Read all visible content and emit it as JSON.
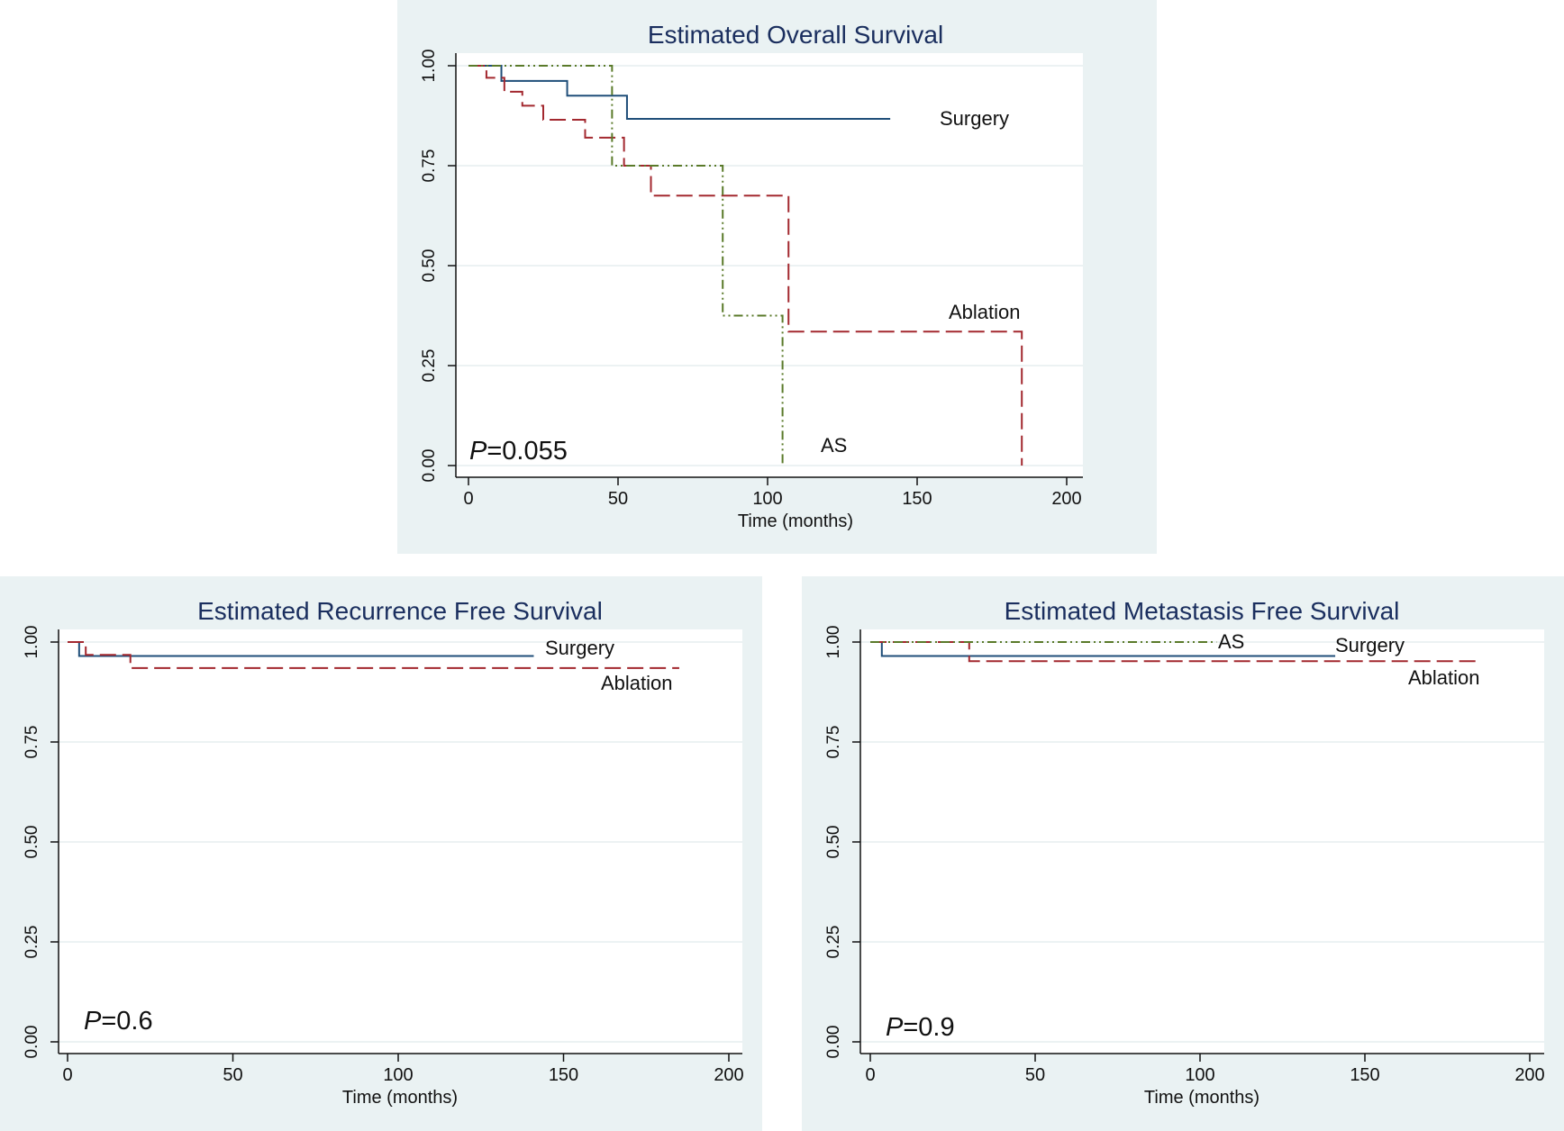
{
  "chart_data": [
    {
      "type": "line",
      "title": "Estimated Overall Survival",
      "xlabel": "Time (months)",
      "ylabel": "",
      "xlim": [
        0,
        200
      ],
      "ylim": [
        0,
        1
      ],
      "xticks": [
        "0",
        "50",
        "100",
        "150",
        "200"
      ],
      "yticks": [
        "0.00",
        "0.25",
        "0.50",
        "0.75",
        "1.00"
      ],
      "pvalue": {
        "prefix": "P",
        "text": "=0.055"
      },
      "series": [
        {
          "name": "Surgery",
          "color": "#1f4e79",
          "dash": "solid",
          "x": [
            0,
            11,
            33,
            53,
            141
          ],
          "y": [
            1.0,
            0.962,
            0.925,
            0.867,
            0.867
          ]
        },
        {
          "name": "Ablation",
          "color": "#a3282f",
          "dash": "dash",
          "x": [
            0,
            6,
            12,
            18,
            25,
            39,
            52,
            61,
            107,
            185
          ],
          "y": [
            1.0,
            0.97,
            0.935,
            0.9,
            0.865,
            0.82,
            0.75,
            0.675,
            0.335,
            0.0
          ]
        },
        {
          "name": "AS",
          "color": "#5a7a2a",
          "dash": "dashdot",
          "x": [
            0,
            48,
            85,
            105
          ],
          "y": [
            1.0,
            0.75,
            0.375,
            0.0
          ]
        }
      ],
      "annotations": [
        "Surgery",
        "Ablation",
        "AS"
      ]
    },
    {
      "type": "line",
      "title": "Estimated Recurrence Free Survival",
      "xlabel": "Time (months)",
      "ylabel": "",
      "xlim": [
        0,
        200
      ],
      "ylim": [
        0,
        1
      ],
      "xticks": [
        "0",
        "50",
        "100",
        "150",
        "200"
      ],
      "yticks": [
        "0.00",
        "0.25",
        "0.50",
        "0.75",
        "1.00"
      ],
      "pvalue": {
        "prefix": "P",
        "text": "=0.6"
      },
      "series": [
        {
          "name": "Surgery",
          "color": "#1f4e79",
          "dash": "solid",
          "x": [
            0,
            3.5,
            141
          ],
          "y": [
            1.0,
            0.965,
            0.965
          ]
        },
        {
          "name": "Ablation",
          "color": "#a3282f",
          "dash": "dash",
          "x": [
            0,
            5.5,
            19,
            185
          ],
          "y": [
            1.0,
            0.968,
            0.935,
            0.935
          ]
        }
      ],
      "annotations": [
        "Surgery",
        "Ablation"
      ]
    },
    {
      "type": "line",
      "title": "Estimated Metastasis Free Survival",
      "xlabel": "Time (months)",
      "ylabel": "",
      "xlim": [
        0,
        200
      ],
      "ylim": [
        0,
        1
      ],
      "xticks": [
        "0",
        "50",
        "100",
        "150",
        "200"
      ],
      "yticks": [
        "0.00",
        "0.25",
        "0.50",
        "0.75",
        "1.00"
      ],
      "pvalue": {
        "prefix": "P",
        "text": "=0.9"
      },
      "series": [
        {
          "name": "Surgery",
          "color": "#1f4e79",
          "dash": "solid",
          "x": [
            0,
            3.5,
            141
          ],
          "y": [
            1.0,
            0.965,
            0.965
          ]
        },
        {
          "name": "Ablation",
          "color": "#a3282f",
          "dash": "dash",
          "x": [
            0,
            30,
            185
          ],
          "y": [
            1.0,
            0.952,
            0.952
          ]
        },
        {
          "name": "AS",
          "color": "#5a7a2a",
          "dash": "dashdot",
          "x": [
            0,
            105
          ],
          "y": [
            1.0,
            1.0
          ]
        }
      ],
      "annotations": [
        "AS",
        "Surgery",
        "Ablation"
      ]
    }
  ]
}
